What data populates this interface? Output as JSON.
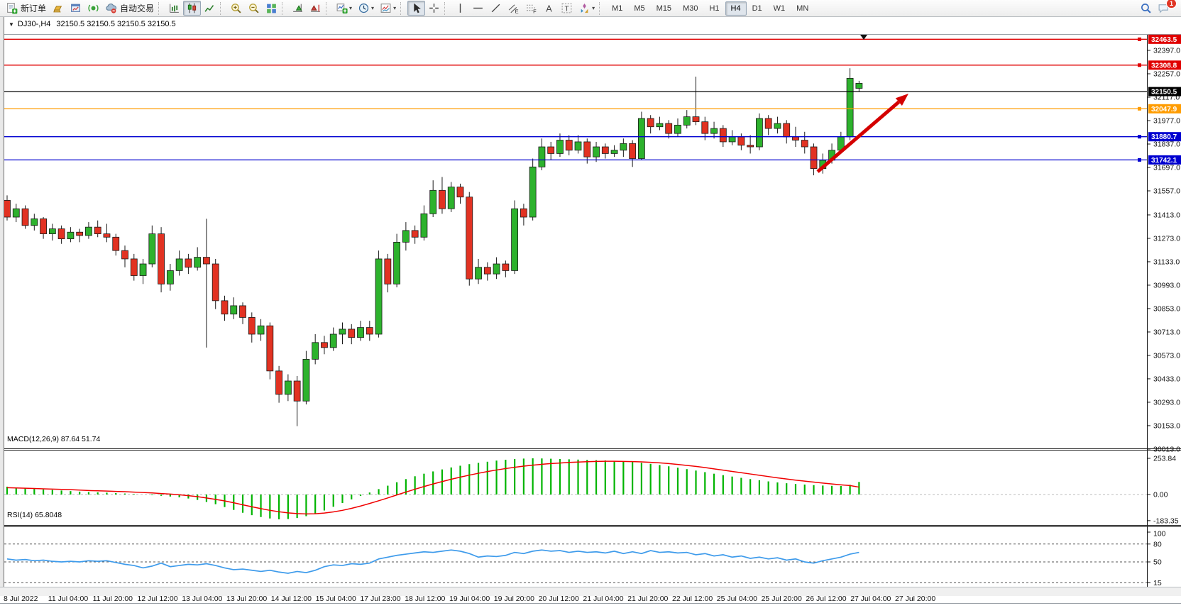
{
  "toolbar": {
    "new_order_label": "新订单",
    "autotrading_label": "自动交易",
    "notification_badge": "1",
    "icon_groups": [
      {
        "icons": [
          {
            "name": "new-order-button",
            "glyph": "doc-plus",
            "label": "新订单"
          },
          {
            "name": "new-chart-button",
            "glyph": "gold-bar"
          },
          {
            "name": "market-watch-button",
            "glyph": "window-chart"
          },
          {
            "name": "signals-button",
            "glyph": "signal"
          },
          {
            "name": "autotrading-button",
            "glyph": "cloud-auto",
            "label": "自动交易"
          }
        ]
      },
      {
        "icons": [
          {
            "name": "bars-chart-button",
            "glyph": "chart-bars"
          },
          {
            "name": "candlestick-chart-button",
            "glyph": "candles",
            "active": true
          },
          {
            "name": "line-chart-button",
            "glyph": "line-chart"
          }
        ]
      },
      {
        "icons": [
          {
            "name": "zoom-in-button",
            "glyph": "zoom-in"
          },
          {
            "name": "zoom-out-button",
            "glyph": "zoom-out"
          },
          {
            "name": "tile-windows-button",
            "glyph": "tiles"
          }
        ]
      },
      {
        "icons": [
          {
            "name": "auto-scroll-button",
            "glyph": "autoscroll"
          },
          {
            "name": "chart-shift-button",
            "glyph": "shift"
          }
        ]
      },
      {
        "icons": [
          {
            "name": "indicators-button",
            "glyph": "add-indicator",
            "dropdown": true
          },
          {
            "name": "period-button",
            "glyph": "clock",
            "dropdown": true
          },
          {
            "name": "templates-button",
            "glyph": "template",
            "dropdown": true
          }
        ]
      },
      {
        "icons": [
          {
            "name": "cursor-button",
            "glyph": "cursor",
            "active": true
          },
          {
            "name": "crosshair-button",
            "glyph": "crosshair"
          }
        ]
      },
      {
        "icons": [
          {
            "name": "vertical-line-button",
            "glyph": "vline"
          },
          {
            "name": "horizontal-line-button",
            "glyph": "hline"
          },
          {
            "name": "trendline-button",
            "glyph": "tline"
          },
          {
            "name": "equidistant-channel-button",
            "glyph": "channel-e"
          },
          {
            "name": "fibonacci-button",
            "glyph": "fibo-f"
          },
          {
            "name": "text-button",
            "glyph": "text-a"
          },
          {
            "name": "text-label-button",
            "glyph": "text-t"
          },
          {
            "name": "shapes-button",
            "glyph": "shapes",
            "dropdown": true
          }
        ]
      }
    ],
    "timeframes": {
      "items": [
        "M1",
        "M5",
        "M15",
        "M30",
        "H1",
        "H4",
        "D1",
        "W1",
        "MN"
      ],
      "active": "H4"
    }
  },
  "chart": {
    "symbol_period": "DJ30-,H4",
    "ohlc_text": "32150.5 32150.5 32150.5 32150.5",
    "macd_label": "MACD(12,26,9) 87.64 51.74",
    "rsi_label": "RSI(14) 65.8048"
  },
  "chart_data": {
    "type": "candlestick",
    "symbol": "DJ30-",
    "timeframe": "H4",
    "current_price": 32150.5,
    "price_axis_ticks": [
      32397.0,
      32257.0,
      32117.0,
      31977.0,
      31837.0,
      31697.0,
      31557.0,
      31413.0,
      31273.0,
      31133.0,
      30993.0,
      30853.0,
      30713.0,
      30573.0,
      30433.0,
      30293.0,
      30153.0,
      30013.0
    ],
    "level_lines": [
      {
        "price": 32463.5,
        "color": "#e00000",
        "handle": true
      },
      {
        "price": 32308.8,
        "color": "#e00000",
        "handle": true
      },
      {
        "price": 32150.5,
        "color": "#000000",
        "handle": false,
        "current": true
      },
      {
        "price": 32047.9,
        "color": "#ff9c00",
        "handle": true
      },
      {
        "price": 31880.7,
        "color": "#0000d0",
        "handle": true
      },
      {
        "price": 31742.1,
        "color": "#0000d0",
        "handle": true
      }
    ],
    "candles": [
      [
        31500,
        31530,
        31380,
        31400
      ],
      [
        31400,
        31480,
        31370,
        31450
      ],
      [
        31450,
        31470,
        31330,
        31350
      ],
      [
        31350,
        31420,
        31320,
        31390
      ],
      [
        31390,
        31400,
        31270,
        31300
      ],
      [
        31300,
        31360,
        31260,
        31330
      ],
      [
        31330,
        31350,
        31240,
        31270
      ],
      [
        31270,
        31340,
        31250,
        31310
      ],
      [
        31310,
        31330,
        31250,
        31290
      ],
      [
        31290,
        31370,
        31270,
        31340
      ],
      [
        31340,
        31380,
        31280,
        31300
      ],
      [
        31300,
        31360,
        31250,
        31280
      ],
      [
        31280,
        31300,
        31170,
        31200
      ],
      [
        31200,
        31230,
        31100,
        31150
      ],
      [
        31150,
        31180,
        31020,
        31050
      ],
      [
        31050,
        31150,
        31000,
        31120
      ],
      [
        31120,
        31350,
        31100,
        31300
      ],
      [
        31300,
        31340,
        30950,
        31000
      ],
      [
        31000,
        31120,
        30960,
        31080
      ],
      [
        31080,
        31200,
        31050,
        31150
      ],
      [
        31150,
        31180,
        31060,
        31100
      ],
      [
        31100,
        31220,
        31080,
        31160
      ],
      [
        31160,
        31390,
        30620,
        31120
      ],
      [
        31120,
        31150,
        30850,
        30900
      ],
      [
        30900,
        30930,
        30780,
        30820
      ],
      [
        30820,
        30920,
        30790,
        30870
      ],
      [
        30870,
        30890,
        30760,
        30800
      ],
      [
        30800,
        30830,
        30650,
        30700
      ],
      [
        30700,
        30790,
        30660,
        30750
      ],
      [
        30750,
        30770,
        30430,
        30480
      ],
      [
        30480,
        30510,
        30290,
        30340
      ],
      [
        30340,
        30460,
        30300,
        30420
      ],
      [
        30420,
        30450,
        30150,
        30300
      ],
      [
        30300,
        30600,
        30280,
        30550
      ],
      [
        30550,
        30700,
        30520,
        30650
      ],
      [
        30650,
        30690,
        30580,
        30620
      ],
      [
        30620,
        30740,
        30600,
        30700
      ],
      [
        30700,
        30770,
        30640,
        30730
      ],
      [
        30730,
        30760,
        30640,
        30680
      ],
      [
        30680,
        30780,
        30660,
        30740
      ],
      [
        30740,
        30780,
        30660,
        30700
      ],
      [
        30700,
        31200,
        30680,
        31150
      ],
      [
        31150,
        31180,
        30950,
        31000
      ],
      [
        31000,
        31300,
        30980,
        31250
      ],
      [
        31250,
        31370,
        31200,
        31320
      ],
      [
        31320,
        31350,
        31240,
        31280
      ],
      [
        31280,
        31470,
        31260,
        31420
      ],
      [
        31420,
        31620,
        31400,
        31560
      ],
      [
        31560,
        31640,
        31420,
        31450
      ],
      [
        31450,
        31610,
        31430,
        31580
      ],
      [
        31580,
        31600,
        31480,
        31520
      ],
      [
        31520,
        31550,
        30990,
        31030
      ],
      [
        31030,
        31150,
        31000,
        31100
      ],
      [
        31100,
        31130,
        31020,
        31060
      ],
      [
        31060,
        31160,
        31030,
        31120
      ],
      [
        31120,
        31140,
        31040,
        31080
      ],
      [
        31080,
        31500,
        31060,
        31450
      ],
      [
        31450,
        31480,
        31350,
        31400
      ],
      [
        31400,
        31750,
        31380,
        31700
      ],
      [
        31700,
        31870,
        31680,
        31820
      ],
      [
        31820,
        31850,
        31740,
        31780
      ],
      [
        31780,
        31900,
        31760,
        31860
      ],
      [
        31860,
        31890,
        31770,
        31800
      ],
      [
        31800,
        31890,
        31780,
        31850
      ],
      [
        31850,
        31870,
        31720,
        31760
      ],
      [
        31760,
        31850,
        31730,
        31820
      ],
      [
        31820,
        31840,
        31750,
        31780
      ],
      [
        31780,
        31830,
        31760,
        31800
      ],
      [
        31800,
        31870,
        31760,
        31840
      ],
      [
        31840,
        31860,
        31700,
        31750
      ],
      [
        31750,
        32030,
        31740,
        31990
      ],
      [
        31990,
        32010,
        31900,
        31940
      ],
      [
        31940,
        32000,
        31920,
        31960
      ],
      [
        31960,
        31980,
        31870,
        31900
      ],
      [
        31900,
        31990,
        31880,
        31950
      ],
      [
        31950,
        32040,
        31930,
        32000
      ],
      [
        32000,
        32240,
        31950,
        31970
      ],
      [
        31970,
        32000,
        31860,
        31900
      ],
      [
        31900,
        31970,
        31870,
        31930
      ],
      [
        31930,
        31950,
        31820,
        31850
      ],
      [
        31850,
        31920,
        31830,
        31880
      ],
      [
        31880,
        31900,
        31800,
        31830
      ],
      [
        31830,
        31890,
        31780,
        31820
      ],
      [
        31820,
        32020,
        31800,
        31990
      ],
      [
        31990,
        32010,
        31890,
        31930
      ],
      [
        31930,
        32000,
        31900,
        31960
      ],
      [
        31960,
        31980,
        31840,
        31880
      ],
      [
        31880,
        31940,
        31820,
        31860
      ],
      [
        31860,
        31910,
        31780,
        31820
      ],
      [
        31820,
        31840,
        31650,
        31690
      ],
      [
        31690,
        31780,
        31660,
        31740
      ],
      [
        31740,
        31840,
        31720,
        31800
      ],
      [
        31800,
        31910,
        31780,
        31880
      ],
      [
        31880,
        32290,
        31860,
        32230
      ],
      [
        32170,
        32215,
        32150,
        32200
      ]
    ],
    "macd": {
      "label": "MACD(12,26,9)",
      "macd_value": 87.64,
      "signal_value": 51.74,
      "axis_ticks": [
        253.84,
        0.0,
        -183.35
      ],
      "values": [
        55,
        48,
        43,
        39,
        36,
        32,
        28,
        24,
        20,
        17,
        15,
        13,
        10,
        7,
        4,
        0,
        -5,
        -9,
        -14,
        -20,
        -28,
        -38,
        -52,
        -68,
        -88,
        -108,
        -128,
        -145,
        -158,
        -168,
        -174,
        -172,
        -165,
        -152,
        -135,
        -112,
        -86,
        -60,
        -34,
        -10,
        14,
        38,
        62,
        86,
        108,
        128,
        146,
        162,
        176,
        190,
        202,
        213,
        222,
        230,
        238,
        244,
        249,
        252,
        254,
        253,
        251,
        249,
        247,
        245,
        243,
        241,
        239,
        236,
        232,
        228,
        222,
        215,
        207,
        198,
        188,
        178,
        168,
        157,
        146,
        136,
        126,
        117,
        108,
        100,
        92,
        85,
        79,
        74,
        70,
        66,
        63,
        61,
        60,
        68,
        88
      ],
      "signal": [
        48,
        46,
        44,
        42,
        40,
        38,
        36,
        34,
        31,
        28,
        26,
        24,
        22,
        20,
        17,
        14,
        11,
        7,
        3,
        -2,
        -8,
        -15,
        -24,
        -34,
        -45,
        -58,
        -72,
        -86,
        -99,
        -111,
        -121,
        -129,
        -134,
        -136,
        -135,
        -130,
        -122,
        -111,
        -97,
        -81,
        -63,
        -44,
        -24,
        -3,
        17,
        37,
        56,
        74,
        91,
        107,
        122,
        136,
        149,
        161,
        172,
        182,
        191,
        199,
        206,
        212,
        217,
        221,
        225,
        228,
        230,
        232,
        233,
        233,
        232,
        231,
        229,
        226,
        222,
        217,
        211,
        204,
        197,
        189,
        180,
        171,
        162,
        153,
        144,
        135,
        126,
        117,
        109,
        101,
        94,
        87,
        80,
        74,
        68,
        63,
        52
      ]
    },
    "rsi": {
      "label": "RSI(14)",
      "period": 14,
      "value": 65.8048,
      "levels": [
        80,
        50,
        15
      ],
      "axis_ticks": [
        100,
        80,
        50,
        15,
        0
      ],
      "values": [
        55,
        53,
        54,
        52,
        53,
        51,
        50,
        51,
        50,
        52,
        51,
        52,
        49,
        46,
        44,
        40,
        43,
        48,
        42,
        44,
        46,
        45,
        47,
        44,
        40,
        37,
        38,
        36,
        34,
        36,
        33,
        31,
        34,
        32,
        36,
        42,
        45,
        44,
        47,
        46,
        48,
        55,
        58,
        61,
        63,
        65,
        67,
        66,
        68,
        70,
        68,
        64,
        58,
        60,
        59,
        61,
        66,
        64,
        68,
        70,
        68,
        69,
        66,
        68,
        66,
        67,
        65,
        68,
        64,
        67,
        64,
        69,
        66,
        67,
        65,
        66,
        62,
        64,
        60,
        62,
        58,
        60,
        56,
        58,
        55,
        57,
        53,
        55,
        50,
        48,
        52,
        55,
        58,
        63,
        66
      ]
    },
    "time_axis": [
      "8 Jul 2022",
      "11 Jul 04:00",
      "11 Jul 20:00",
      "12 Jul 12:00",
      "13 Jul 04:00",
      "13 Jul 20:00",
      "14 Jul 12:00",
      "15 Jul 04:00",
      "17 Jul 23:00",
      "18 Jul 12:00",
      "19 Jul 04:00",
      "19 Jul 20:00",
      "20 Jul 12:00",
      "21 Jul 04:00",
      "21 Jul 20:00",
      "22 Jul 12:00",
      "25 Jul 04:00",
      "25 Jul 20:00",
      "26 Jul 12:00",
      "27 Jul 04:00",
      "27 Jul 20:00"
    ],
    "trend_arrow": {
      "from": [
        1152,
        218
      ],
      "to": [
        1280,
        108
      ],
      "color": "#d40000"
    },
    "colors": {
      "candle_up": "#2db22d",
      "candle_down": "#e23222",
      "candle_outline": "#1a1a1a",
      "macd_histogram": "#00b400",
      "macd_signal": "#f00000",
      "rsi_line": "#3e9beb",
      "badge_text": "#ffffff"
    }
  }
}
